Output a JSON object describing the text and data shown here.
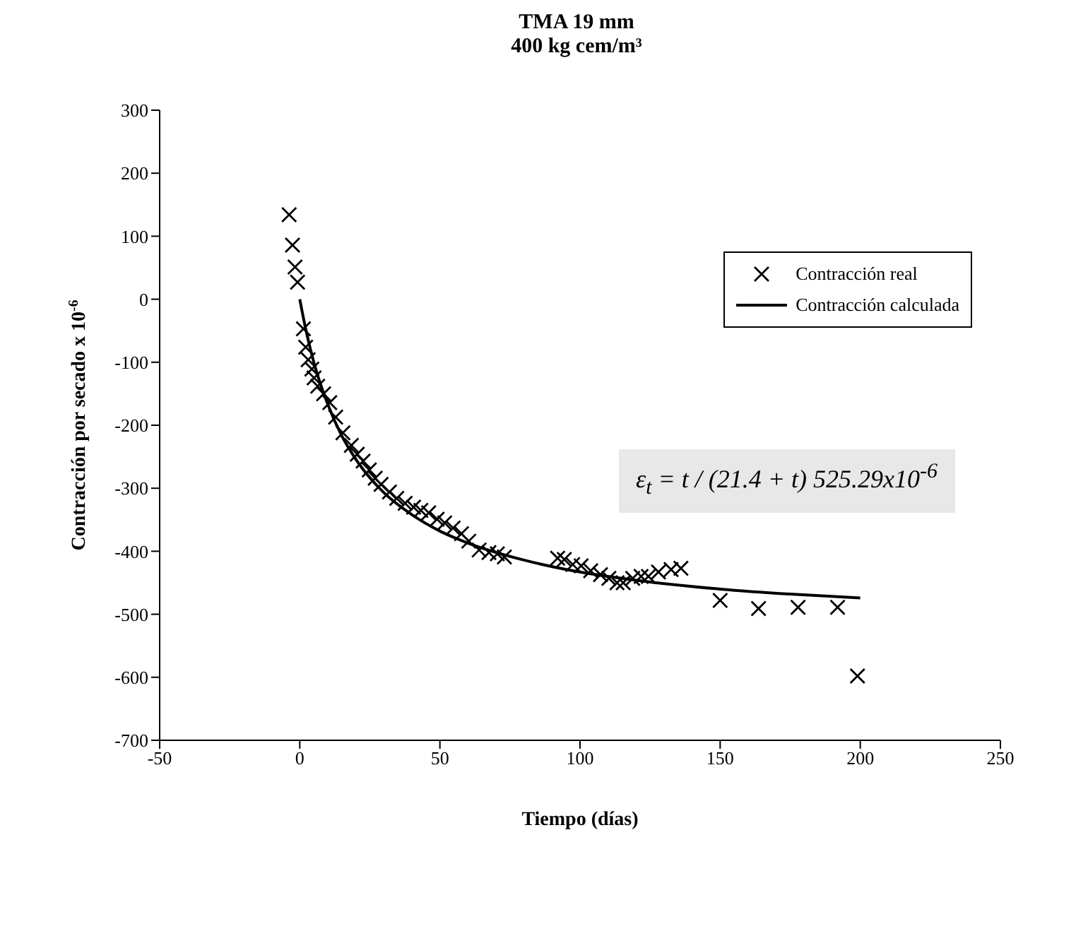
{
  "chart_data": {
    "type": "scatter",
    "title": "TMA 19 mm",
    "subtitle": "400 kg cem/m³",
    "xlabel": "Tiempo (días)",
    "ylabel": "Contracción por secado x 10$^{-6}$",
    "annotations": [
      "ε$_{t}$ = t / (21.4 + t) 525.29x10$^{-6}$"
    ],
    "xlim": [
      -50,
      250
    ],
    "xticks": [
      -50,
      0,
      50,
      100,
      150,
      200,
      250
    ],
    "ylim": [
      -700,
      300
    ],
    "yticks": [
      -700,
      -600,
      -500,
      -400,
      -300,
      -200,
      -100,
      0,
      100,
      200,
      300
    ],
    "grid": false,
    "legend": "top right",
    "series": [
      {
        "name": "Contracción real",
        "marker": "cross",
        "color": "#000000",
        "x": [
          -3.8,
          -2.6,
          -1.7,
          -0.8,
          1.3,
          2.1,
          3,
          4.3,
          5.1,
          6.4,
          8.5,
          10.7,
          12.8,
          15.4,
          18.4,
          20.5,
          22.6,
          24.8,
          26.9,
          29,
          32,
          34.6,
          37.6,
          40.6,
          43.2,
          46,
          49,
          51.7,
          54.7,
          57.7,
          60.3,
          64,
          67.5,
          70.5,
          73,
          92,
          94.4,
          97.4,
          100.4,
          103.8,
          107.3,
          110.3,
          113.2,
          115.4,
          118.8,
          121.8,
          124.4,
          128,
          132.5,
          136,
          150,
          163.7,
          177.8,
          191.9,
          199
        ],
        "values": [
          134,
          86,
          51,
          27,
          -47,
          -76,
          -96,
          -111,
          -125,
          -138,
          -150,
          -164,
          -187,
          -212,
          -232,
          -246,
          -257,
          -271,
          -284,
          -294,
          -306,
          -316,
          -324,
          -330,
          -335,
          -339,
          -349,
          -355,
          -363,
          -372,
          -384,
          -398,
          -402,
          -404,
          -409,
          -411,
          -413,
          -421,
          -423,
          -431,
          -437,
          -443,
          -450,
          -450,
          -443,
          -440,
          -440,
          -433,
          -429,
          -427,
          -478,
          -491,
          -489,
          -489,
          -598
        ]
      },
      {
        "name": "Contracción calculada",
        "type": "line",
        "marker": "none",
        "line_style": "solid",
        "color": "#000000",
        "x": [
          0,
          2,
          5,
          10,
          15,
          20,
          30,
          40,
          50,
          60,
          80,
          100,
          120,
          150,
          175,
          200
        ],
        "values": [
          0,
          -45,
          -100,
          -167,
          -217,
          -254,
          -307,
          -342,
          -368,
          -387,
          -414,
          -433,
          -446,
          -460,
          -468,
          -474
        ]
      }
    ]
  }
}
